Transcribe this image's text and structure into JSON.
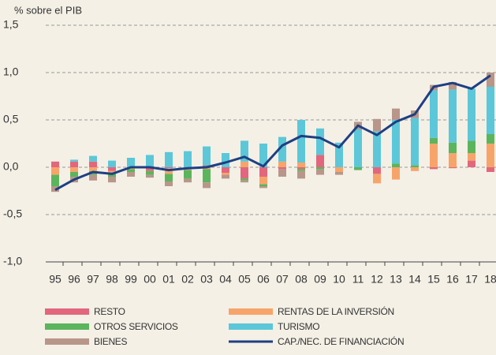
{
  "chart_data": {
    "type": "bar",
    "ylabel": "% sobre el PIB",
    "categories": [
      "95",
      "96",
      "97",
      "98",
      "99",
      "00",
      "01",
      "02",
      "03",
      "04",
      "05",
      "06",
      "07",
      "08",
      "09",
      "10",
      "11",
      "12",
      "13",
      "14",
      "15",
      "16",
      "17",
      "18"
    ],
    "series": [
      {
        "name": "RESTO",
        "color": "#e2677c",
        "values": [
          0.06,
          0.06,
          0.06,
          -0.04,
          0.0,
          -0.04,
          -0.01,
          0.0,
          0.02,
          -0.06,
          -0.12,
          -0.1,
          -0.02,
          -0.02,
          0.13,
          0.0,
          0.0,
          -0.07,
          0.0,
          0.0,
          -0.02,
          -0.01,
          0.07,
          -0.05
        ]
      },
      {
        "name": "RENTAS DE LA INVERSIÓN",
        "color": "#f7a46b",
        "values": [
          -0.08,
          -0.05,
          -0.04,
          -0.02,
          -0.02,
          0.0,
          -0.06,
          -0.03,
          -0.02,
          -0.02,
          0.06,
          -0.08,
          0.06,
          0.05,
          0.0,
          -0.05,
          0.0,
          -0.1,
          -0.13,
          -0.04,
          0.25,
          0.15,
          0.08,
          0.25
        ]
      },
      {
        "name": "OTROS SERVICIOS",
        "color": "#5bb55c",
        "values": [
          -0.12,
          -0.05,
          -0.04,
          -0.04,
          -0.03,
          -0.04,
          -0.08,
          -0.09,
          -0.14,
          0.0,
          -0.02,
          -0.02,
          0.0,
          -0.02,
          -0.02,
          0.0,
          -0.03,
          0.0,
          0.04,
          0.02,
          0.06,
          0.11,
          0.13,
          0.1
        ]
      },
      {
        "name": "TURISMO",
        "color": "#5cc7d8",
        "values": [
          0.0,
          0.02,
          0.06,
          0.07,
          0.1,
          0.13,
          0.16,
          0.17,
          0.2,
          0.15,
          0.22,
          0.25,
          0.26,
          0.45,
          0.28,
          0.26,
          0.4,
          0.38,
          0.46,
          0.5,
          0.5,
          0.56,
          0.55,
          0.5
        ]
      },
      {
        "name": "BIENES",
        "color": "#b8968a",
        "values": [
          -0.06,
          -0.06,
          -0.06,
          -0.06,
          -0.05,
          -0.03,
          -0.05,
          -0.04,
          -0.06,
          -0.04,
          -0.02,
          -0.02,
          -0.08,
          -0.08,
          -0.06,
          -0.03,
          0.08,
          0.13,
          0.12,
          0.08,
          0.06,
          0.08,
          0.0,
          0.15
        ]
      }
    ],
    "line": {
      "name": "CAP./NEC. DE FINANCIACIÓN",
      "color": "#1f3f82",
      "values": [
        -0.24,
        -0.13,
        -0.05,
        -0.07,
        0.0,
        0.0,
        -0.03,
        -0.01,
        0.0,
        0.05,
        0.11,
        0.01,
        0.23,
        0.33,
        0.31,
        0.21,
        0.44,
        0.34,
        0.48,
        0.56,
        0.85,
        0.89,
        0.83,
        0.97
      ]
    },
    "ylim": [
      -1.0,
      1.5
    ],
    "yticks": [
      {
        "value": -1.0,
        "label": "-1,0"
      },
      {
        "value": -0.5,
        "label": "-0,5"
      },
      {
        "value": 0.0,
        "label": "0,0"
      },
      {
        "value": 0.5,
        "label": "0,5"
      },
      {
        "value": 1.0,
        "label": "1,0"
      },
      {
        "value": 1.5,
        "label": "1,5"
      }
    ],
    "grid": true
  }
}
